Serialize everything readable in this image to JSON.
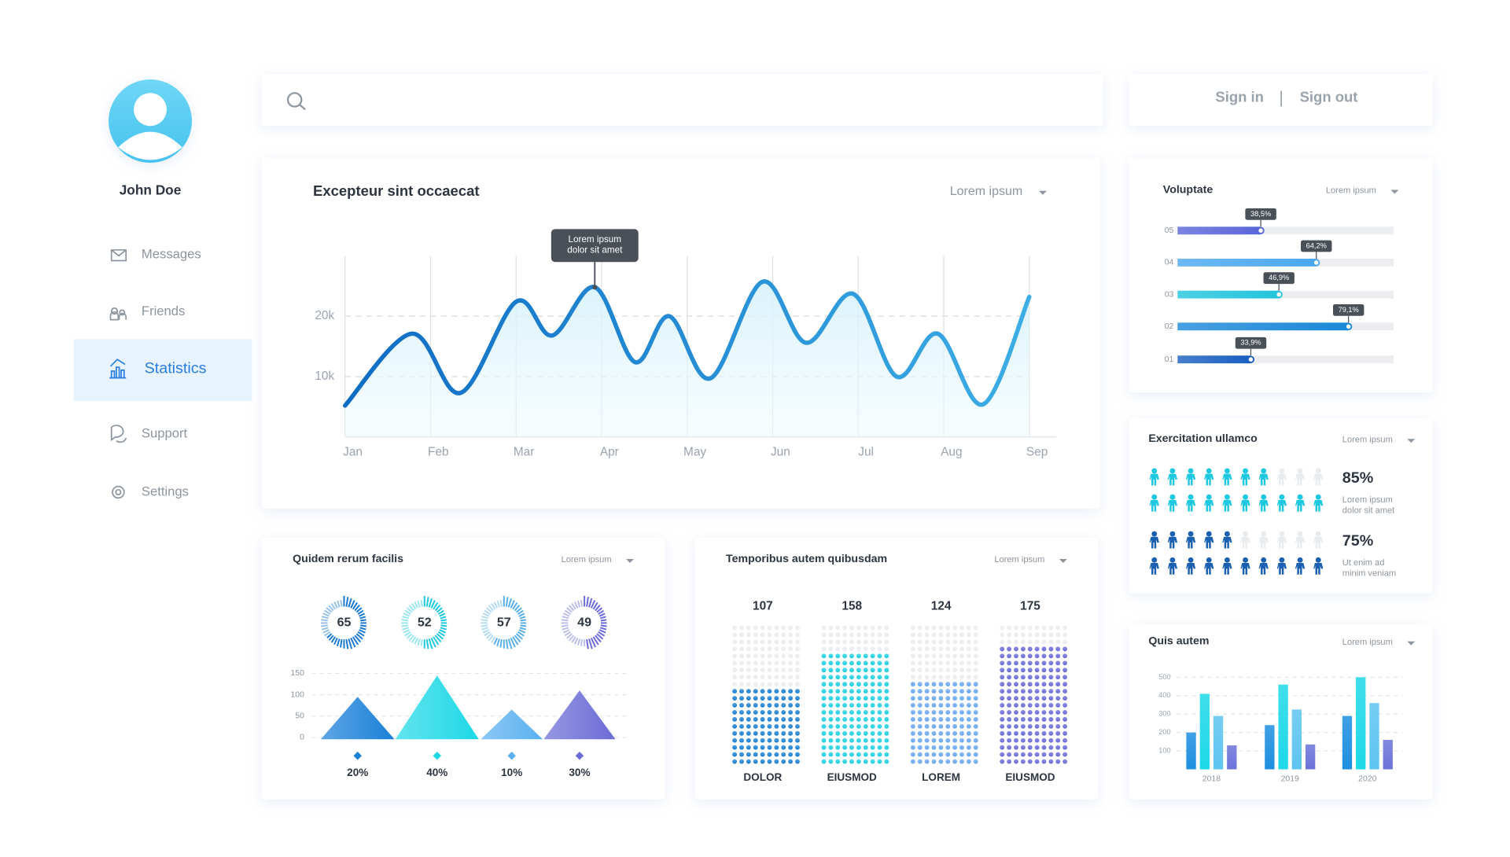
{
  "profile": {
    "name": "John Doe"
  },
  "nav": [
    {
      "label": "Messages"
    },
    {
      "label": "Friends"
    },
    {
      "label": "Statistics",
      "active": true
    },
    {
      "label": "Support"
    },
    {
      "label": "Settings"
    }
  ],
  "auth": {
    "sign_in": "Sign in",
    "separator": "|",
    "sign_out": "Sign out"
  },
  "main_chart": {
    "type": "line",
    "title": "Excepteur sint occaecat",
    "dropdown": "Lorem ipsum",
    "tooltip": [
      "Lorem ipsum",
      "dolor sit amet"
    ],
    "color": "#1a9fe0",
    "x": [
      0,
      0.78,
      1.35,
      2.0,
      2.42,
      2.92,
      3.39,
      3.79,
      4.27,
      4.88,
      5.39,
      5.94,
      6.45,
      6.93,
      7.46,
      8.0
    ],
    "values": [
      5200,
      17100,
      7300,
      22400,
      16800,
      24800,
      12400,
      20000,
      9700,
      25700,
      15600,
      23700,
      10000,
      17100,
      5400,
      23200
    ],
    "xlim": [
      0,
      8
    ],
    "xticks": [
      {
        "value": 0,
        "label": "Jan"
      },
      {
        "value": 1,
        "label": "Feb"
      },
      {
        "value": 2,
        "label": "Mar"
      },
      {
        "value": 3,
        "label": "Apr"
      },
      {
        "value": 4,
        "label": "May"
      },
      {
        "value": 5,
        "label": "Jun"
      },
      {
        "value": 6,
        "label": "Jul"
      },
      {
        "value": 7,
        "label": "Aug"
      },
      {
        "value": 8,
        "label": "Sep"
      }
    ],
    "ylim": [
      0,
      30000
    ],
    "yticks": [
      {
        "value": 10000,
        "label": "10k"
      },
      {
        "value": 20000,
        "label": "20k"
      }
    ],
    "grid": true
  },
  "quidem": {
    "title": "Quidem rerum facilis",
    "dropdown": "Lorem ipsum",
    "gauges": {
      "type": "gauge",
      "values": [
        65,
        52,
        57,
        49
      ],
      "colors": [
        "#1a78d0",
        "#1ec8e0",
        "#5aaeea",
        "#6a6ad8"
      ]
    },
    "triangles": {
      "type": "bar",
      "values": [
        95,
        145,
        65,
        110
      ],
      "colors": [
        "#1a80d8",
        "#1ed8e6",
        "#5ab0f0",
        "#6b6bd6"
      ],
      "ylim": [
        0,
        150
      ],
      "yticks": [
        0,
        50,
        100,
        150
      ],
      "shares": [
        20,
        40,
        10,
        30
      ],
      "value_labels": [
        "20%",
        "40%",
        "10%",
        "30%"
      ]
    }
  },
  "temporibus": {
    "title": "Temporibus autem quibusdam",
    "dropdown": "Lorem ipsum",
    "type": "bar",
    "categories": [
      "DOLOR",
      "EIUSMOD",
      "LOREM",
      "EIUSMOD"
    ],
    "values": [
      107,
      158,
      124,
      175
    ],
    "colors": [
      "#1a7fd0",
      "#1ecfe0",
      "#6aa6ee",
      "#6a6ad4"
    ],
    "ylim": [
      0,
      200
    ]
  },
  "voluptate": {
    "title": "Voluptate",
    "dropdown": "Lorem ipsum",
    "type": "bar",
    "orientation": "horizontal",
    "categories": [
      "05",
      "04",
      "03",
      "02",
      "01"
    ],
    "values": [
      38.5,
      64.2,
      46.9,
      79.1,
      33.9
    ],
    "value_labels": [
      "38,5%",
      "64,2%",
      "46,9%",
      "79,1%",
      "33,9%"
    ],
    "colors": [
      "#5a66d8",
      "#4aa8f0",
      "#22c4dc",
      "#1a88d8",
      "#1a5fc0"
    ],
    "xlim": [
      0,
      100
    ]
  },
  "exercitation": {
    "title": "Exercitation ullamco",
    "dropdown": "Lorem ipsum",
    "type": "pictogram",
    "values": [
      85,
      75
    ],
    "value_labels": [
      "85%",
      "75%"
    ],
    "captions": [
      [
        "Lorem ipsum",
        "dolor sit amet"
      ],
      [
        "Ut enim ad",
        "minim veniam"
      ]
    ],
    "colors": [
      "#1ec8e0",
      "#1a5fb0"
    ]
  },
  "quis": {
    "title": "Quis autem",
    "dropdown": "Lorem ipsum",
    "type": "bar",
    "categories": [
      "2018",
      "2019",
      "2020"
    ],
    "series": [
      {
        "color": "#1e8fe0",
        "values": [
          200,
          240,
          290
        ]
      },
      {
        "color": "#1ed8e8",
        "values": [
          410,
          460,
          500
        ]
      },
      {
        "color": "#5ec4f0",
        "values": [
          290,
          325,
          360
        ]
      },
      {
        "color": "#6b73d9",
        "values": [
          130,
          135,
          160
        ]
      }
    ],
    "ylim": [
      0,
      500
    ],
    "yticks": [
      100,
      200,
      300,
      400,
      500
    ],
    "grid": true
  }
}
